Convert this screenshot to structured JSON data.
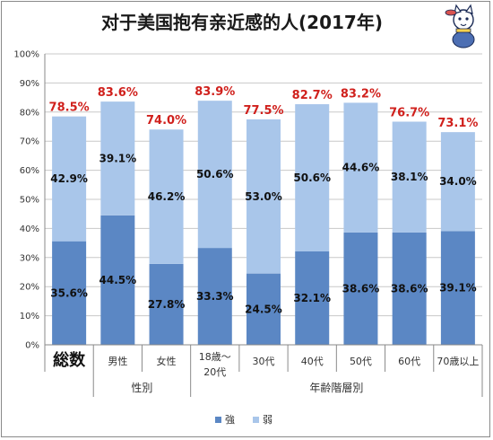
{
  "chart_data": {
    "type": "bar",
    "stacked": true,
    "title": "对于美国抱有亲近感的人(2017年)",
    "categories": [
      "総数",
      "男性",
      "女性",
      "18歳～\n20代",
      "30代",
      "40代",
      "50代",
      "60代",
      "70歳以上"
    ],
    "groups": [
      {
        "label": "性別",
        "categories": [
          "男性",
          "女性"
        ]
      },
      {
        "label": "年齢階層別",
        "categories": [
          "18歳～\n20代",
          "30代",
          "40代",
          "50代",
          "60代",
          "70歳以上"
        ]
      }
    ],
    "series": [
      {
        "name": "強",
        "color": "#5b87c4",
        "values": [
          35.6,
          44.5,
          27.8,
          33.3,
          24.5,
          32.1,
          38.6,
          38.6,
          39.1
        ],
        "labels": [
          "35.6%",
          "44.5%",
          "27.8%",
          "33.3%",
          "24.5%",
          "32.1%",
          "38.6%",
          "38.6%",
          "39.1%"
        ]
      },
      {
        "name": "弱",
        "color": "#a9c6ea",
        "values": [
          42.9,
          39.1,
          46.2,
          50.6,
          53.0,
          50.6,
          44.6,
          38.1,
          34.0
        ],
        "labels": [
          "42.9%",
          "39.1%",
          "46.2%",
          "50.6%",
          "53.0%",
          "50.6%",
          "44.6%",
          "38.1%",
          "34.0%"
        ]
      }
    ],
    "totals": [
      78.5,
      83.6,
      74.0,
      83.9,
      77.5,
      82.7,
      83.2,
      76.7,
      73.1
    ],
    "total_labels": [
      "78.5%",
      "83.6%",
      "74.0%",
      "83.9%",
      "77.5%",
      "82.7%",
      "83.2%",
      "76.7%",
      "73.1%"
    ],
    "total_color": "#d0201c",
    "ylim": [
      0,
      100
    ],
    "yticks": [
      0,
      10,
      20,
      30,
      40,
      50,
      60,
      70,
      80,
      90,
      100
    ],
    "ytick_labels": [
      "0%",
      "10%",
      "20%",
      "30%",
      "40%",
      "50%",
      "60%",
      "70%",
      "80%",
      "90%",
      "100%"
    ],
    "grid": true,
    "legend": "bottom-center"
  },
  "mascot": {
    "icon": "cat-mascot-icon"
  }
}
